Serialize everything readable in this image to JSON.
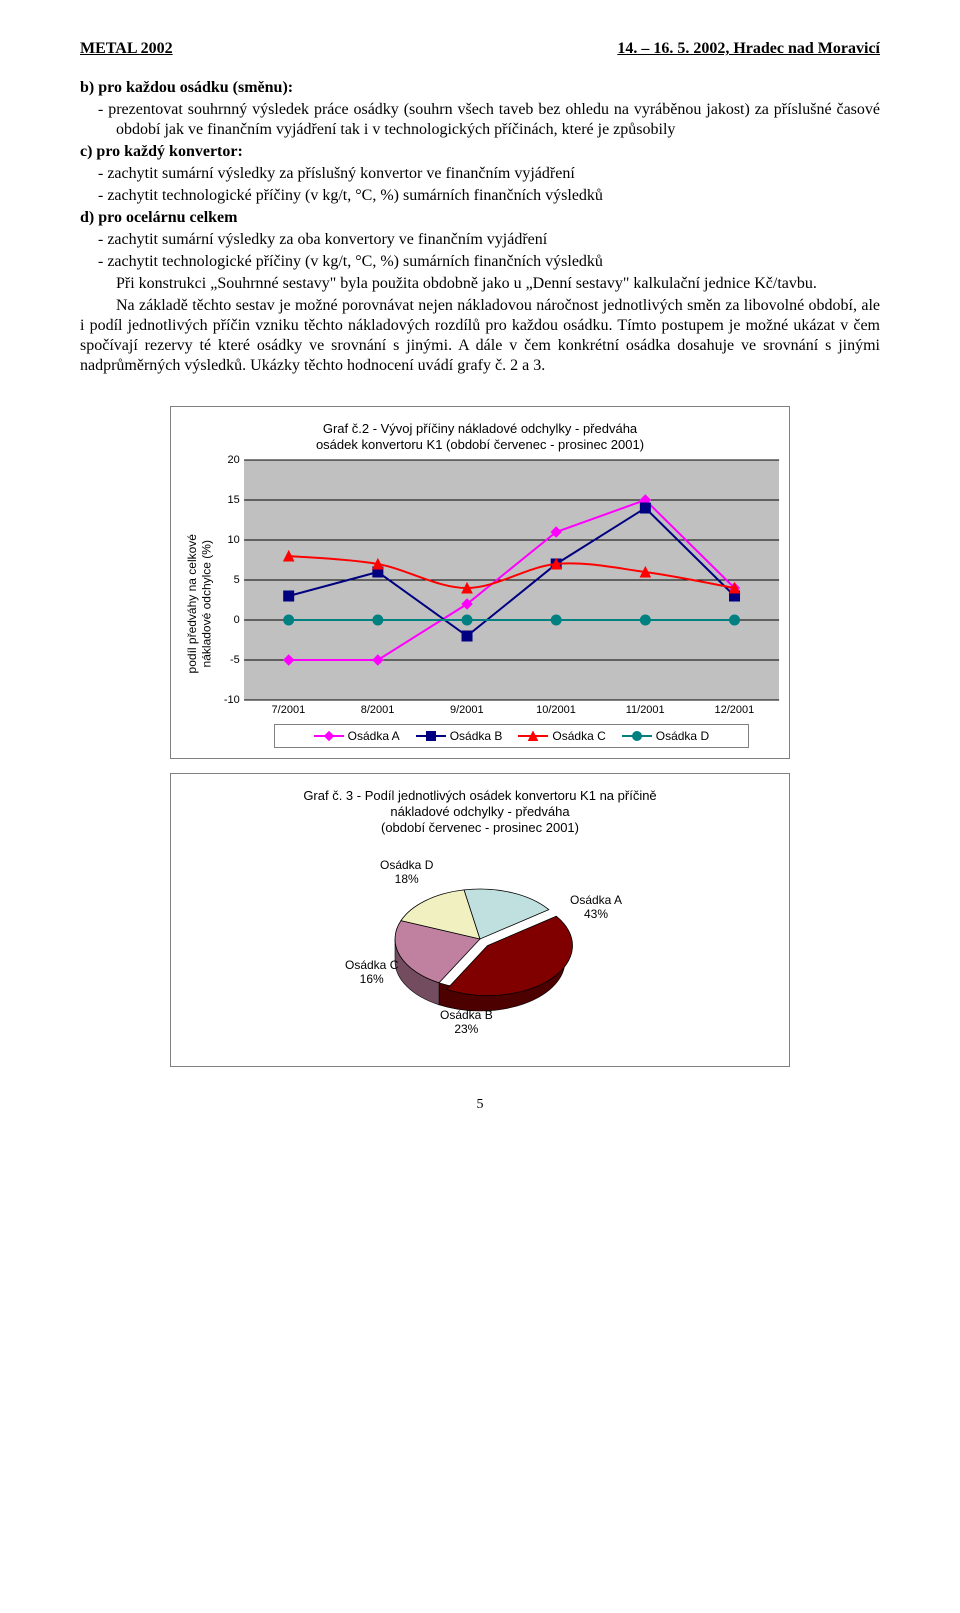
{
  "header": {
    "left": "METAL 2002",
    "right": "14. – 16. 5. 2002, Hradec nad Moravicí"
  },
  "text": {
    "b_head": "b) pro každou osádku (směnu):",
    "b1": "-   prezentovat souhrnný výsledek práce osádky (souhrn všech taveb bez ohledu na vyráběnou jakost) za příslušné časové období jak ve finančním vyjádření tak i v technologických příčinách, které je způsobily",
    "c_head": "c) pro každý konvertor:",
    "c1": "-   zachytit sumární výsledky za příslušný konvertor ve finančním vyjádření",
    "c2": "-   zachytit technologické příčiny (v kg/t, °C, %) sumárních finančních výsledků",
    "d_head": "d) pro ocelárnu celkem",
    "d1": "-   zachytit sumární výsledky za oba konvertory ve finančním vyjádření",
    "d2": "-   zachytit technologické příčiny (v kg/t, °C, %) sumárních finančních výsledků",
    "para1": "Při konstrukci „Souhrnné sestavy\" byla použita obdobně jako u „Denní sestavy\" kalkulační jednice Kč/tavbu.",
    "para2": "Na základě těchto sestav je možné porovnávat nejen nákladovou náročnost jednotlivých směn za libovolné období, ale i podíl jednotlivých příčin vzniku těchto nákladových rozdílů pro každou osádku. Tímto postupem je možné ukázat v čem spočívají rezervy té které osádky ve srovnání s jinými. A dále   v čem konkrétní osádka dosahuje ve srovnání s jinými nadprůměrných výsledků. Ukázky těchto hodnocení uvádí grafy č. 2 a 3."
  },
  "chart2": {
    "title_l1": "Graf č.2 - Vývoj příčiny nákladové odchylky - předváha",
    "title_l2": "osádek konvertoru K1 (období červenec - prosinec 2001)",
    "ylabel_l1": "podíl předváhy na celkové",
    "ylabel_l2": "nákladové odchylce (%)",
    "ymin": -10,
    "ymax": 20,
    "ytick_step": 5,
    "yticks": [
      "20",
      "15",
      "10",
      "5",
      "0",
      "-5",
      "-10"
    ],
    "categories": [
      "7/2001",
      "8/2001",
      "9/2001",
      "10/2001",
      "11/2001",
      "12/2001"
    ],
    "plot_bg": "#c0c0c0",
    "grid_color": "#000000",
    "series": [
      {
        "name": "Osádka A",
        "color": "#ff00ff",
        "marker": "diamond",
        "values": [
          -5,
          -5,
          2,
          11,
          15,
          4
        ]
      },
      {
        "name": "Osádka B",
        "color": "#000080",
        "marker": "square",
        "values": [
          3,
          6,
          -2,
          7,
          14,
          3
        ]
      },
      {
        "name": "Osádka C",
        "color": "#ff0000",
        "marker": "triangle",
        "values": [
          8,
          7,
          4,
          7,
          6,
          4
        ]
      },
      {
        "name": "Osádka D",
        "color": "#008080",
        "marker": "circle",
        "values": [
          0,
          0,
          0,
          0,
          0,
          0
        ]
      }
    ],
    "legend": [
      "Osádka A",
      "Osádka B",
      "Osádka C",
      "Osádka D"
    ],
    "line_width": 2,
    "marker_size": 10
  },
  "chart3": {
    "title_l1": "Graf č. 3 - Podíl jednotlivých osádek konvertoru K1 na příčině",
    "title_l2": "nákladové odchylky - předváha",
    "title_l3": "(období červenec - prosinec 2001)",
    "slices": [
      {
        "label": "Osádka A",
        "pct": "43%",
        "value": 43,
        "color": "#800000"
      },
      {
        "label": "Osádka B",
        "pct": "23%",
        "value": 23,
        "color": "#c080a0"
      },
      {
        "label": "Osádka C",
        "pct": "16%",
        "value": 16,
        "color": "#f0f0c0"
      },
      {
        "label": "Osádka D",
        "pct": "18%",
        "value": 18,
        "color": "#c0e0e0"
      }
    ]
  },
  "page_number": "5"
}
